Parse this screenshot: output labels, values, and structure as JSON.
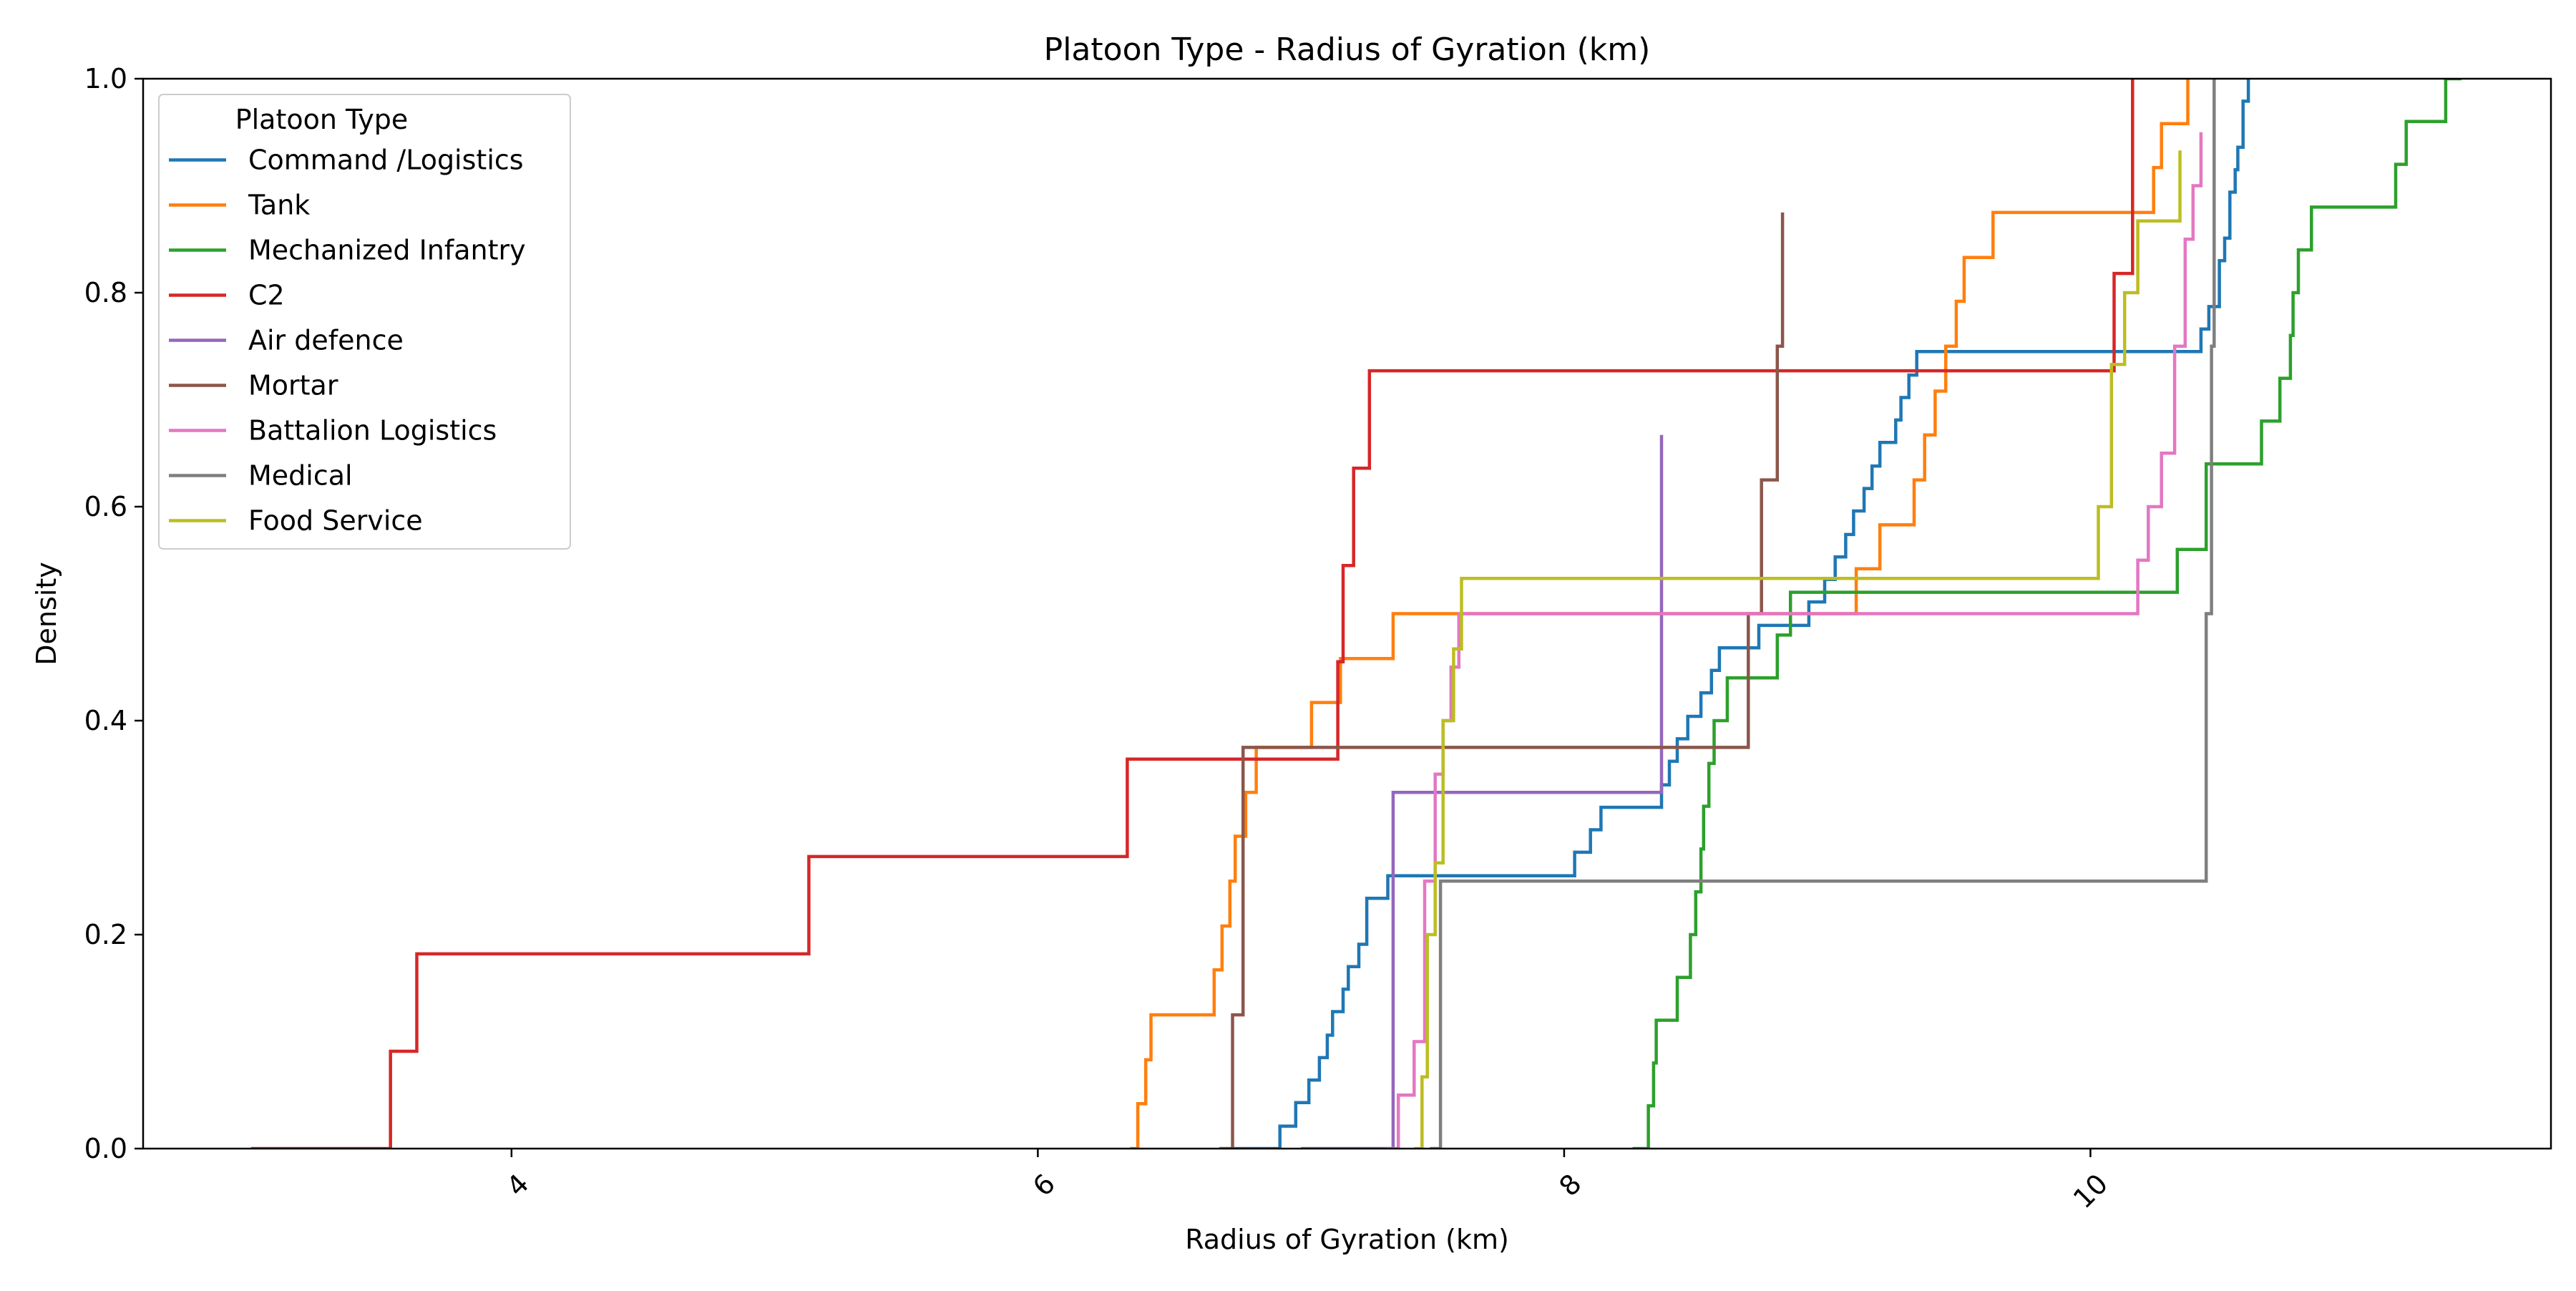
{
  "chart_data": {
    "type": "line",
    "step": true,
    "title": "Platoon Type - Radius of Gyration (km)",
    "xlabel": "Radius of Gyration (km)",
    "ylabel": "Density",
    "xlim": [
      2.6,
      11.75
    ],
    "ylim": [
      0,
      1
    ],
    "xticks": [
      4,
      6,
      8,
      10
    ],
    "yticks": [
      0.0,
      0.2,
      0.4,
      0.6,
      0.8,
      1.0
    ],
    "xtick_labels": [
      "4",
      "6",
      "8",
      "10"
    ],
    "ytick_labels": [
      "0.0",
      "0.2",
      "0.4",
      "0.6",
      "0.8",
      "1.0"
    ],
    "xtick_rotation": 45,
    "grid": false,
    "legend": {
      "title": "Platoon Type",
      "placement": "upper-left"
    },
    "series": [
      {
        "name": "Command /Logistics",
        "color": "#1f77b4",
        "x": [
          6.74,
          6.92,
          6.98,
          7.03,
          7.07,
          7.1,
          7.12,
          7.16,
          7.18,
          7.22,
          7.25,
          7.33,
          8.04,
          8.1,
          8.14,
          8.16,
          8.37,
          8.4,
          8.43,
          8.47,
          8.52,
          8.56,
          8.59,
          8.61,
          8.74,
          8.93,
          8.99,
          9.03,
          9.07,
          9.1,
          9.14,
          9.17,
          9.2,
          9.23,
          9.26,
          9.28,
          9.31,
          9.34,
          9.37,
          9.4,
          9.49,
          9.52,
          9.56,
          9.59,
          9.62,
          9.65,
          10.42,
          10.45,
          10.49,
          10.51,
          10.53,
          10.55,
          10.56,
          10.58,
          10.6
        ],
        "y": [
          0.0,
          0.021,
          0.043,
          0.064,
          0.085,
          0.106,
          0.128,
          0.149,
          0.17,
          0.191,
          0.234,
          0.255,
          0.277,
          0.298,
          0.319,
          0.319,
          0.34,
          0.362,
          0.383,
          0.404,
          0.426,
          0.447,
          0.468,
          0.468,
          0.489,
          0.511,
          0.532,
          0.553,
          0.574,
          0.596,
          0.617,
          0.638,
          0.66,
          0.66,
          0.681,
          0.702,
          0.723,
          0.745,
          0.745,
          0.745,
          0.745,
          0.745,
          0.745,
          0.745,
          0.745,
          0.745,
          0.766,
          0.787,
          0.83,
          0.851,
          0.894,
          0.915,
          0.936,
          0.979,
          1.0
        ]
      },
      {
        "name": "Tank",
        "color": "#ff7f0e",
        "x": [
          6.35,
          6.38,
          6.41,
          6.43,
          6.67,
          6.7,
          6.73,
          6.75,
          6.79,
          6.83,
          6.86,
          7.04,
          7.15,
          7.35,
          9.07,
          9.11,
          9.2,
          9.28,
          9.33,
          9.37,
          9.41,
          9.45,
          9.49,
          9.52,
          9.61,
          9.63,
          10.08,
          10.11,
          10.24,
          10.27,
          10.33,
          10.37
        ],
        "y": [
          0.0,
          0.042,
          0.083,
          0.125,
          0.167,
          0.208,
          0.25,
          0.292,
          0.333,
          0.375,
          0.375,
          0.417,
          0.458,
          0.5,
          0.5,
          0.542,
          0.583,
          0.583,
          0.625,
          0.667,
          0.708,
          0.75,
          0.792,
          0.833,
          0.833,
          0.875,
          0.875,
          0.875,
          0.917,
          0.958,
          0.958,
          1.0
        ]
      },
      {
        "name": "Mechanized Infantry",
        "color": "#2ca02c",
        "x": [
          8.26,
          8.32,
          8.34,
          8.35,
          8.43,
          8.48,
          8.5,
          8.52,
          8.53,
          8.55,
          8.57,
          8.62,
          8.81,
          8.86,
          9.09,
          9.14,
          10.33,
          10.44,
          10.65,
          10.72,
          10.76,
          10.77,
          10.79,
          10.84,
          11.16,
          11.2,
          11.23,
          11.35,
          11.41
        ],
        "y": [
          0.0,
          0.04,
          0.08,
          0.12,
          0.16,
          0.2,
          0.24,
          0.28,
          0.32,
          0.36,
          0.4,
          0.44,
          0.48,
          0.52,
          0.52,
          0.52,
          0.56,
          0.64,
          0.68,
          0.72,
          0.76,
          0.8,
          0.84,
          0.88,
          0.92,
          0.96,
          0.96,
          1.0,
          1.0
        ]
      },
      {
        "name": "C2",
        "color": "#d62728",
        "x": [
          3.01,
          3.54,
          3.64,
          5.13,
          6.34,
          7.14,
          7.16,
          7.2,
          7.26,
          10.09,
          10.16
        ],
        "y": [
          0.0,
          0.091,
          0.182,
          0.273,
          0.364,
          0.455,
          0.545,
          0.636,
          0.727,
          0.818,
          1.0
        ]
      },
      {
        "name": "Air defence",
        "color": "#9467bd",
        "x": [
          7.0,
          7.35,
          8.37
        ],
        "y": [
          0.0,
          0.333,
          0.667
        ]
      },
      {
        "name": "Mortar",
        "color": "#8c564b",
        "x": [
          6.69,
          6.74,
          6.78,
          8.7,
          8.75,
          8.81,
          8.83
        ],
        "y": [
          0.0,
          0.125,
          0.375,
          0.5,
          0.625,
          0.75,
          0.875
        ]
      },
      {
        "name": "Battalion Logistics",
        "color": "#e377c2",
        "x": [
          7.32,
          7.37,
          7.43,
          7.47,
          7.51,
          7.54,
          7.57,
          7.6,
          10.18,
          10.22,
          10.27,
          10.32,
          10.36,
          10.39,
          10.42
        ],
        "y": [
          0.0,
          0.05,
          0.1,
          0.25,
          0.35,
          0.4,
          0.45,
          0.5,
          0.55,
          0.6,
          0.65,
          0.75,
          0.85,
          0.9,
          0.95
        ]
      },
      {
        "name": "Medical",
        "color": "#7f7f7f",
        "x": [
          7.49,
          7.53,
          10.44,
          10.46,
          10.47
        ],
        "y": [
          0.0,
          0.25,
          0.5,
          0.75,
          1.0
        ]
      },
      {
        "name": "Food Service",
        "color": "#bcbd22",
        "x": [
          7.43,
          7.46,
          7.48,
          7.51,
          7.54,
          7.58,
          7.61,
          10.03,
          10.08,
          10.13,
          10.18,
          10.34
        ],
        "y": [
          0.0,
          0.067,
          0.2,
          0.267,
          0.4,
          0.467,
          0.533,
          0.6,
          0.733,
          0.8,
          0.867,
          0.933
        ]
      }
    ]
  }
}
